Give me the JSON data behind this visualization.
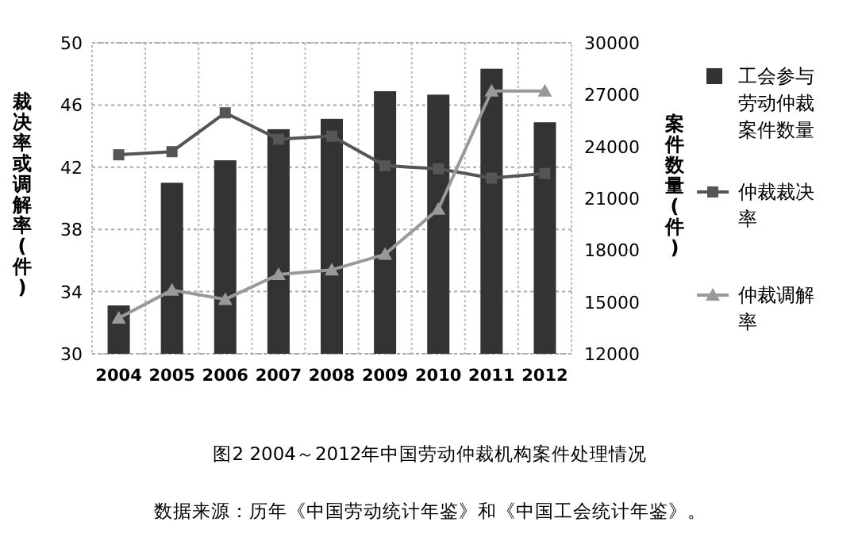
{
  "chart_data": {
    "type": "bar",
    "title": "图2 2004～2012年中国劳动仲裁机构案件处理情况",
    "annotations": [
      "数据来源：历年《中国劳动统计年鉴》和《中国工会统计年鉴》。"
    ],
    "ylabel": "裁决率或调解率(件)",
    "y2label": "案件数量(件)",
    "categories": [
      "2004",
      "2005",
      "2006",
      "2007",
      "2008",
      "2009",
      "2010",
      "2011",
      "2012"
    ],
    "series": [
      {
        "name": "工会参与劳动仲裁案件数量",
        "axis": "y2",
        "color": "#333333",
        "values": [
          14800,
          21900,
          23200,
          25000,
          25600,
          27200,
          27000,
          28500,
          25400
        ]
      },
      {
        "name": "仲裁裁决率",
        "type": "line",
        "marker": "square",
        "color": "#555555",
        "values": [
          42.8,
          43.0,
          45.5,
          43.8,
          44.0,
          42.1,
          41.9,
          41.3,
          41.6
        ]
      },
      {
        "name": "仲裁调解率",
        "type": "line",
        "marker": "triangle",
        "color": "#999999",
        "values": [
          32.3,
          34.1,
          33.5,
          35.1,
          35.4,
          36.4,
          39.3,
          46.9,
          46.9
        ]
      }
    ],
    "ylim": [
      30,
      50
    ],
    "yticks": [
      30,
      34,
      38,
      42,
      46,
      50
    ],
    "y2lim": [
      12000,
      30000
    ],
    "y2ticks": [
      12000,
      15000,
      18000,
      21000,
      24000,
      27000,
      30000
    ],
    "grid": true,
    "legend": "right"
  }
}
